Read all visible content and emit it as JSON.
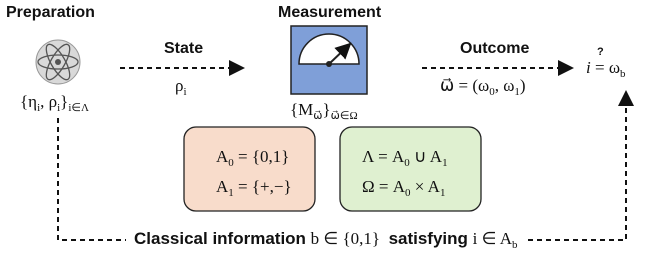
{
  "preparation": {
    "title": "Preparation",
    "ensemble": [
      {
        "text": "{η"
      },
      {
        "text": "i",
        "sub": true
      },
      {
        "text": ", ρ"
      },
      {
        "text": "i",
        "sub": true
      },
      {
        "text": "}"
      },
      {
        "text": "i∈Λ",
        "sub": true
      }
    ]
  },
  "state": {
    "title": "State",
    "symbol": [
      {
        "text": "ρ"
      },
      {
        "text": "i",
        "sub": true
      }
    ]
  },
  "measurement": {
    "title": "Measurement",
    "povm": [
      {
        "text": "{M"
      },
      {
        "text": "ω⃗",
        "sub": true
      },
      {
        "text": "}"
      },
      {
        "text": "ω⃗∈Ω",
        "sub": true
      }
    ]
  },
  "outcome": {
    "title": "Outcome",
    "symbol": [
      {
        "text": "ω⃗ = (ω"
      },
      {
        "text": "0",
        "sub": true
      },
      {
        "text": ", ω"
      },
      {
        "text": "1",
        "sub": true
      },
      {
        "text": ")"
      }
    ]
  },
  "check": {
    "lhs": "i",
    "relation": "=",
    "mark": "?",
    "rhs": [
      {
        "text": "ω"
      },
      {
        "text": "b",
        "sub": true
      }
    ]
  },
  "sets": {
    "left": [
      [
        {
          "text": "A"
        },
        {
          "text": "0",
          "sub": true
        },
        {
          "text": " = {0,1}"
        }
      ],
      [
        {
          "text": "A"
        },
        {
          "text": "1",
          "sub": true
        },
        {
          "text": " = {+,−}"
        }
      ]
    ],
    "right": [
      [
        {
          "text": "Λ = A"
        },
        {
          "text": "0",
          "sub": true
        },
        {
          "text": " ∪ A"
        },
        {
          "text": "1",
          "sub": true
        }
      ],
      [
        {
          "text": "Ω = A"
        },
        {
          "text": "0",
          "sub": true
        },
        {
          "text": " × A"
        },
        {
          "text": "1",
          "sub": true
        }
      ]
    ]
  },
  "footer": [
    {
      "text": "Classical information ",
      "bold": true
    },
    {
      "text": "b ∈ {0,1}  "
    },
    {
      "text": "satisfying ",
      "bold": true
    },
    {
      "text": "i ∈ A"
    },
    {
      "text": "b",
      "sub": true
    }
  ]
}
